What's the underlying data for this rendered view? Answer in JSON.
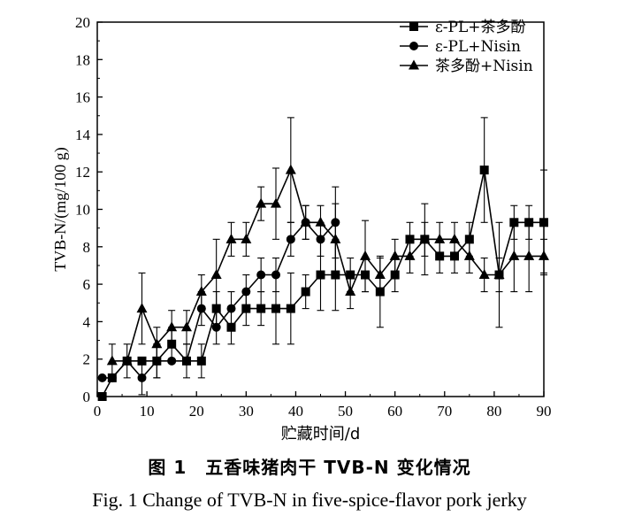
{
  "figure": {
    "caption_zh": "图 1　五香味猪肉干 TVB-N 变化情况",
    "caption_en": "Fig. 1 Change of TVB-N in five-spice-flavor pork jerky"
  },
  "chart_data": {
    "type": "line",
    "xlabel": "贮藏时间/d",
    "ylabel": "TVB-N/(mg/100 g)",
    "xlim": [
      0,
      90
    ],
    "ylim": [
      0,
      20
    ],
    "xticks": [
      0,
      10,
      20,
      30,
      40,
      50,
      60,
      70,
      80,
      90
    ],
    "yticks": [
      0,
      2,
      4,
      6,
      8,
      10,
      12,
      14,
      16,
      18,
      20
    ],
    "grid": false,
    "legend_position": "top-right",
    "series": [
      {
        "name": "ε-PL+茶多酚",
        "marker": "square",
        "x": [
          1,
          3,
          6,
          9,
          12,
          15,
          18,
          21,
          24,
          27,
          30,
          33,
          36,
          39,
          42,
          45,
          48,
          51,
          54,
          57,
          60,
          63,
          66,
          69,
          72,
          75,
          78,
          81,
          84,
          87,
          90
        ],
        "y": [
          0,
          1.0,
          1.9,
          1.9,
          1.9,
          2.8,
          1.9,
          1.9,
          4.7,
          3.7,
          4.7,
          4.7,
          4.7,
          4.7,
          5.6,
          6.5,
          6.5,
          6.5,
          6.5,
          5.6,
          6.5,
          8.4,
          8.4,
          7.5,
          7.5,
          8.4,
          12.1,
          6.5,
          9.3,
          9.3,
          9.3
        ],
        "err": [
          0,
          0,
          0,
          0,
          0.9,
          0.9,
          0.9,
          0.9,
          0.9,
          0.9,
          0.9,
          0.9,
          1.9,
          1.9,
          0.9,
          1.9,
          1.9,
          0.9,
          0.9,
          1.9,
          0.9,
          0.9,
          0.9,
          0.9,
          0.9,
          0.9,
          2.8,
          2.8,
          0.9,
          0.9,
          2.8
        ]
      },
      {
        "name": "ε-PL+Nisin",
        "marker": "circle",
        "x": [
          1,
          3,
          6,
          9,
          12,
          15,
          18,
          21,
          24,
          27,
          30,
          33,
          36,
          39,
          42,
          45,
          48
        ],
        "y": [
          1.0,
          1.0,
          1.9,
          1.0,
          1.9,
          1.9,
          1.9,
          4.7,
          3.7,
          4.7,
          5.6,
          6.5,
          6.5,
          8.4,
          9.3,
          8.4,
          9.3
        ],
        "err": [
          0,
          0,
          0,
          0.9,
          0.9,
          0,
          0,
          0.9,
          0.9,
          0.9,
          0.9,
          0.9,
          0.9,
          0.9,
          0.9,
          0.9,
          1.9
        ]
      },
      {
        "name": "茶多酚+Nisin",
        "marker": "triangle",
        "x": [
          3,
          6,
          9,
          12,
          15,
          18,
          21,
          24,
          27,
          30,
          33,
          36,
          39,
          42,
          45,
          48,
          51,
          54,
          57,
          60,
          63,
          66,
          69,
          72,
          75,
          78,
          81,
          84,
          87,
          90
        ],
        "y": [
          1.9,
          1.9,
          4.7,
          2.8,
          3.7,
          3.7,
          5.6,
          6.5,
          8.4,
          8.4,
          10.3,
          10.3,
          12.1,
          9.3,
          9.3,
          8.4,
          5.6,
          7.5,
          6.5,
          7.5,
          7.5,
          8.4,
          8.4,
          8.4,
          7.5,
          6.5,
          6.5,
          7.5,
          7.5,
          7.5
        ],
        "err": [
          0.9,
          0.9,
          1.9,
          0.9,
          0.9,
          0.9,
          0.9,
          1.9,
          0.9,
          0.9,
          0.9,
          1.9,
          2.8,
          0.9,
          0.9,
          1.9,
          0.9,
          1.9,
          0.9,
          0.9,
          0.9,
          1.9,
          0.9,
          0.9,
          0.9,
          0.9,
          0.9,
          1.9,
          1.9,
          0.9
        ]
      }
    ]
  }
}
